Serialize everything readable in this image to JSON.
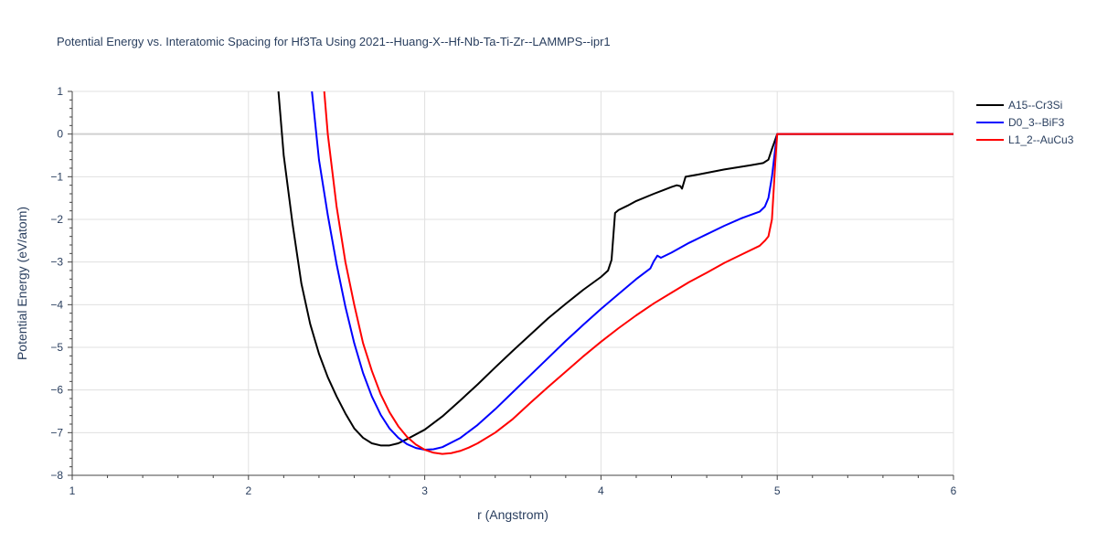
{
  "chart_data": {
    "type": "line",
    "title": "Potential Energy vs. Interatomic Spacing for Hf3Ta Using 2021--Huang-X--Hf-Nb-Ta-Ti-Zr--LAMMPS--ipr1",
    "xlabel": "r (Angstrom)",
    "ylabel": "Potential Energy (eV/atom)",
    "xlim": [
      1,
      6
    ],
    "ylim": [
      -8,
      1
    ],
    "xticks": [
      1,
      2,
      3,
      4,
      5,
      6
    ],
    "yticks": [
      1,
      0,
      -1,
      -2,
      -3,
      -4,
      -5,
      -6,
      -7,
      -8
    ],
    "xtick_labels": [
      "1",
      "2",
      "3",
      "4",
      "5",
      "6"
    ],
    "ytick_labels": [
      "1",
      "0",
      "−1",
      "−2",
      "−3",
      "−4",
      "−5",
      "−6",
      "−7",
      "−8"
    ],
    "grid": true,
    "legend_position": "top-right",
    "series": [
      {
        "name": "A15--Cr3Si",
        "color": "#000000",
        "x": [
          2.17,
          2.2,
          2.25,
          2.3,
          2.35,
          2.4,
          2.45,
          2.5,
          2.55,
          2.6,
          2.65,
          2.7,
          2.75,
          2.8,
          2.85,
          2.9,
          3.0,
          3.1,
          3.2,
          3.3,
          3.4,
          3.5,
          3.6,
          3.7,
          3.8,
          3.9,
          4.0,
          4.04,
          4.06,
          4.08,
          4.1,
          4.15,
          4.2,
          4.3,
          4.35,
          4.4,
          4.43,
          4.45,
          4.46,
          4.48,
          4.55,
          4.7,
          4.85,
          4.92,
          4.95,
          4.97,
          5.0,
          5.2,
          5.5,
          6.0
        ],
        "y": [
          1.0,
          -0.5,
          -2.1,
          -3.5,
          -4.45,
          -5.15,
          -5.7,
          -6.15,
          -6.55,
          -6.9,
          -7.12,
          -7.25,
          -7.3,
          -7.3,
          -7.25,
          -7.15,
          -6.93,
          -6.62,
          -6.25,
          -5.87,
          -5.47,
          -5.08,
          -4.7,
          -4.32,
          -3.98,
          -3.65,
          -3.35,
          -3.2,
          -2.95,
          -1.85,
          -1.78,
          -1.68,
          -1.57,
          -1.4,
          -1.32,
          -1.24,
          -1.2,
          -1.22,
          -1.28,
          -1.0,
          -0.95,
          -0.83,
          -0.73,
          -0.68,
          -0.6,
          -0.35,
          0.0,
          0.0,
          0.0,
          0.0
        ]
      },
      {
        "name": "D0_3--BiF3",
        "color": "#0000ff",
        "x": [
          2.36,
          2.4,
          2.45,
          2.5,
          2.55,
          2.6,
          2.65,
          2.7,
          2.75,
          2.8,
          2.85,
          2.9,
          2.95,
          3.0,
          3.05,
          3.1,
          3.2,
          3.3,
          3.4,
          3.5,
          3.6,
          3.7,
          3.8,
          3.9,
          4.0,
          4.1,
          4.2,
          4.28,
          4.3,
          4.32,
          4.34,
          4.4,
          4.5,
          4.6,
          4.7,
          4.8,
          4.9,
          4.93,
          4.95,
          4.97,
          4.99,
          5.0,
          5.2,
          5.5,
          6.0
        ],
        "y": [
          1.0,
          -0.6,
          -1.9,
          -3.05,
          -4.05,
          -4.9,
          -5.6,
          -6.15,
          -6.58,
          -6.9,
          -7.12,
          -7.27,
          -7.36,
          -7.4,
          -7.39,
          -7.34,
          -7.13,
          -6.82,
          -6.45,
          -6.05,
          -5.65,
          -5.25,
          -4.85,
          -4.47,
          -4.1,
          -3.75,
          -3.4,
          -3.15,
          -2.98,
          -2.85,
          -2.9,
          -2.78,
          -2.55,
          -2.35,
          -2.15,
          -1.97,
          -1.82,
          -1.7,
          -1.5,
          -1.0,
          -0.3,
          0.0,
          0.0,
          0.0,
          0.0
        ]
      },
      {
        "name": "L1_2--AuCu3",
        "color": "#ff0000",
        "x": [
          2.43,
          2.45,
          2.5,
          2.55,
          2.6,
          2.65,
          2.7,
          2.75,
          2.8,
          2.85,
          2.9,
          2.95,
          3.0,
          3.05,
          3.1,
          3.15,
          3.2,
          3.25,
          3.3,
          3.4,
          3.5,
          3.6,
          3.7,
          3.8,
          3.9,
          4.0,
          4.1,
          4.2,
          4.3,
          4.4,
          4.5,
          4.6,
          4.7,
          4.8,
          4.9,
          4.93,
          4.95,
          4.97,
          4.99,
          5.0,
          5.2,
          5.5,
          6.0
        ],
        "y": [
          1.0,
          0.0,
          -1.7,
          -3.0,
          -4.0,
          -4.9,
          -5.55,
          -6.1,
          -6.52,
          -6.85,
          -7.1,
          -7.28,
          -7.4,
          -7.47,
          -7.5,
          -7.48,
          -7.43,
          -7.35,
          -7.25,
          -7.0,
          -6.68,
          -6.3,
          -5.93,
          -5.57,
          -5.21,
          -4.87,
          -4.55,
          -4.25,
          -3.97,
          -3.72,
          -3.47,
          -3.25,
          -3.02,
          -2.82,
          -2.62,
          -2.5,
          -2.4,
          -2.0,
          -0.6,
          0.0,
          0.0,
          0.0,
          0.0
        ]
      }
    ]
  }
}
